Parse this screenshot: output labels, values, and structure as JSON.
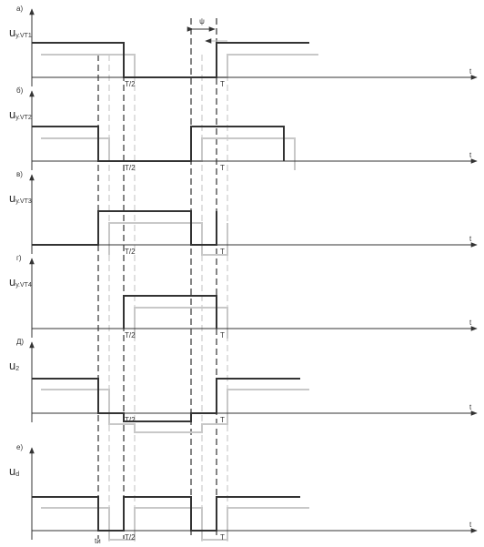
{
  "panels": [
    {
      "letter": "а)",
      "signal": "u",
      "signal_sub": "у.VT1",
      "axis": "t",
      "tick_half": "T/2",
      "tick_full": "T"
    },
    {
      "letter": "б)",
      "signal": "u",
      "signal_sub": "у.VT2",
      "axis": "t",
      "tick_half": "T/2",
      "tick_full": "T"
    },
    {
      "letter": "в)",
      "signal": "u",
      "signal_sub": "у.VT3",
      "axis": "t",
      "tick_half": "T/2",
      "tick_full": "T"
    },
    {
      "letter": "г)",
      "signal": "u",
      "signal_sub": "у.VT4",
      "axis": "t",
      "tick_half": "T/2",
      "tick_full": "T"
    },
    {
      "letter": "Д)",
      "signal": "u",
      "signal_sub": "2",
      "axis": "t",
      "tick_half": "T/2",
      "tick_full": "T"
    },
    {
      "letter": "е)",
      "signal": "u",
      "signal_sub": "d",
      "axis": "t",
      "tick_half": "T/2",
      "tick_full": "T"
    }
  ],
  "pulse_label": "tи",
  "phase_label": "ψ"
}
